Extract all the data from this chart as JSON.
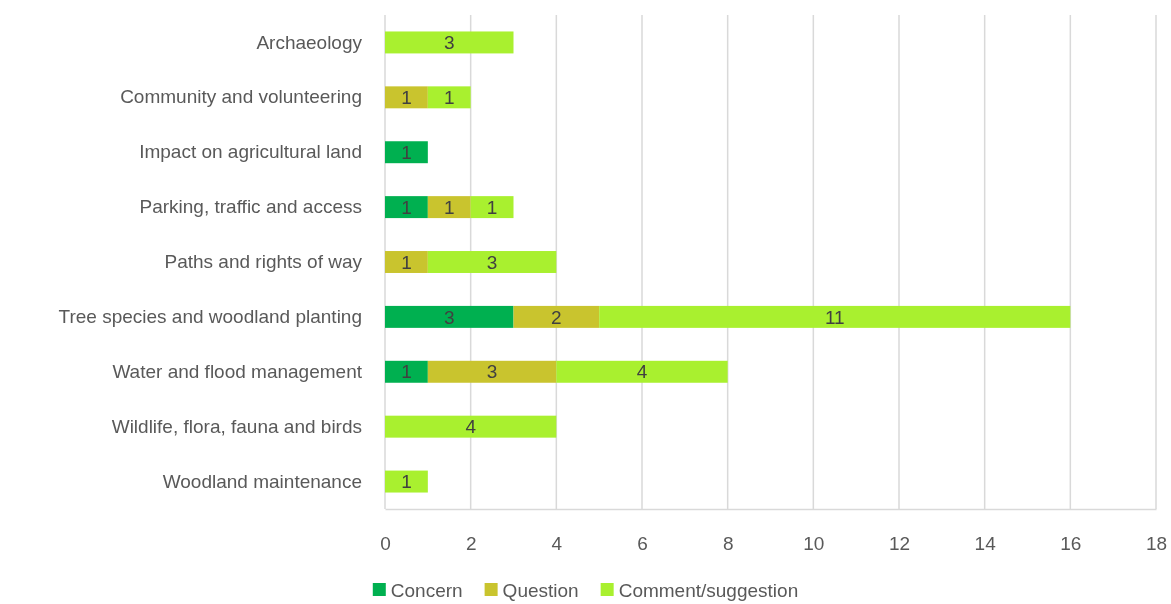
{
  "chart_data": {
    "type": "bar",
    "orientation": "horizontal",
    "stacked": true,
    "categories": [
      "Archaeology",
      "Community and volunteering",
      "Impact on agricultural land",
      "Parking, traffic and access",
      "Paths and rights of way",
      "Tree species and woodland planting",
      "Water and flood management",
      "Wildlife, flora, fauna and birds",
      "Woodland maintenance"
    ],
    "series": [
      {
        "name": "Concern",
        "color": "#00b050",
        "values": [
          null,
          null,
          1,
          1,
          null,
          3,
          1,
          null,
          null
        ]
      },
      {
        "name": "Question",
        "color": "#c9c42e",
        "values": [
          null,
          1,
          null,
          1,
          1,
          2,
          3,
          null,
          null
        ]
      },
      {
        "name": "Comment/suggestion",
        "color": "#a9f02f",
        "values": [
          3,
          1,
          null,
          1,
          3,
          11,
          4,
          4,
          1
        ]
      }
    ],
    "xlim": [
      0,
      18
    ],
    "xticks": [
      0,
      2,
      4,
      6,
      8,
      10,
      12,
      14,
      16,
      18
    ],
    "grid": "x",
    "legend": "bottom",
    "data_labels": true
  }
}
